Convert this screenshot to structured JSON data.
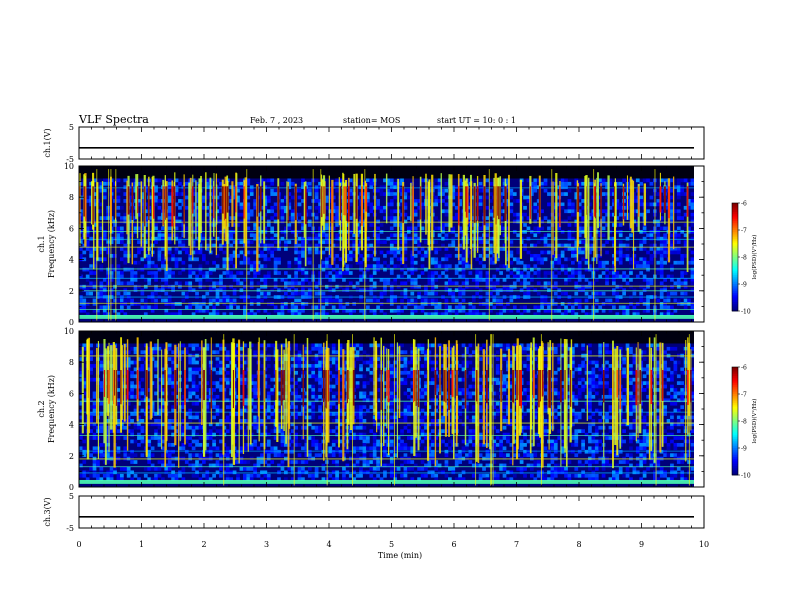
{
  "header": {
    "title": "VLF Spectra",
    "date": "Feb. 7 , 2023",
    "station": "station= MOS",
    "start": "start  UT =   10: 0  : 1"
  },
  "chart_data": [
    {
      "type": "line",
      "name": "ch1-waveform",
      "ylabel": "ch.1(V)",
      "ylim": [
        -5,
        5
      ],
      "yticks": [
        "5",
        "-5"
      ],
      "xlim": [
        0,
        10
      ],
      "x": [
        0,
        9.84
      ],
      "values": [
        -1.5,
        -1.5
      ]
    },
    {
      "type": "heatmap",
      "name": "ch1-spectrogram",
      "ylabel": "ch.1\nFrequency (kHz)",
      "ylim": [
        0,
        10
      ],
      "yticks": [
        "0",
        "2",
        "4",
        "6",
        "8",
        "10"
      ],
      "xlim": [
        0,
        10
      ],
      "data_xmax": 9.84,
      "colorbar": {
        "label": "log(PSD)(V²/Hz)",
        "range": [
          -10,
          -6
        ],
        "ticks": [
          "-6",
          "-7",
          "-8",
          "-9",
          "-10"
        ]
      }
    },
    {
      "type": "heatmap",
      "name": "ch2-spectrogram",
      "ylabel": "ch.2\nFrequency (kHz)",
      "ylim": [
        0,
        10
      ],
      "yticks": [
        "0",
        "2",
        "4",
        "6",
        "8",
        "10"
      ],
      "xlim": [
        0,
        10
      ],
      "data_xmax": 9.84,
      "colorbar": {
        "label": "log(PSD)(V²/Hz)",
        "range": [
          -10,
          -6
        ],
        "ticks": [
          "-6",
          "-7",
          "-8",
          "-9",
          "-10"
        ]
      }
    },
    {
      "type": "line",
      "name": "ch3-waveform",
      "ylabel": "ch.3(V)",
      "ylim": [
        -5,
        5
      ],
      "yticks": [
        "5",
        "-5"
      ],
      "xlim": [
        0,
        10
      ],
      "x": [
        0,
        9.84
      ],
      "values": [
        -1.5,
        -1.5
      ]
    }
  ],
  "xaxis": {
    "label": "Time (min)",
    "ticks": [
      "0",
      "1",
      "2",
      "3",
      "4",
      "5",
      "6",
      "7",
      "8",
      "9",
      "10"
    ]
  }
}
